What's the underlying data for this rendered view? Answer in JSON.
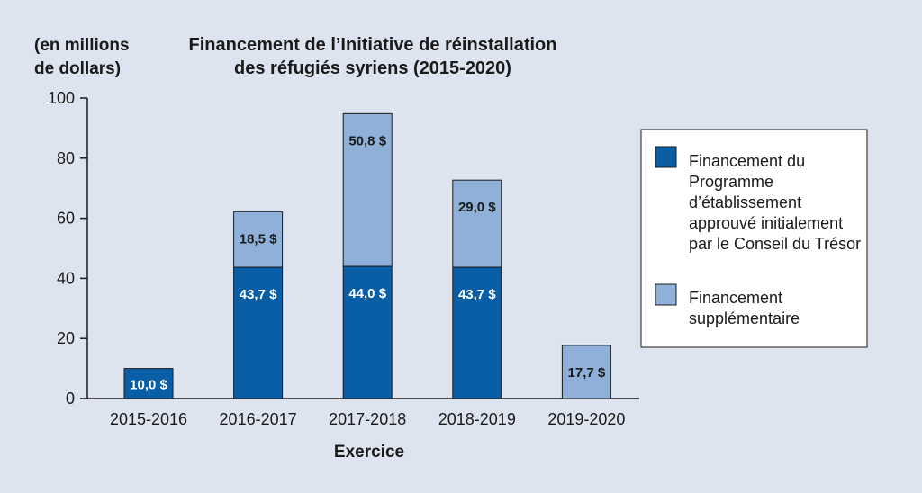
{
  "chart_data": {
    "type": "bar",
    "stacked": true,
    "title_lines": [
      "Financement de l’Initiative de réinstallation",
      "des réfugiés syriens (2015-2020)"
    ],
    "ylabel_lines": [
      "(en millions",
      "de dollars)"
    ],
    "xlabel": "Exercice",
    "ylim": [
      0,
      100
    ],
    "yticks": [
      0,
      20,
      40,
      60,
      80,
      100
    ],
    "grid": false,
    "legend_position": "right",
    "categories": [
      "2015-2016",
      "2016-2017",
      "2017-2018",
      "2018-2019",
      "2019-2020"
    ],
    "series": [
      {
        "name_lines": [
          "Financement du",
          "Programme",
          "d’établissement",
          "approuvé initialement",
          "par le Conseil du Trésor"
        ],
        "color": "#0a5ea6",
        "label_color": "#ffffff",
        "values": [
          10.0,
          43.7,
          44.0,
          43.7,
          0
        ],
        "labels": [
          "10,0 $",
          "43,7 $",
          "44,0 $",
          "43,7 $",
          ""
        ]
      },
      {
        "name_lines": [
          "Financement",
          "supplémentaire"
        ],
        "color": "#8fb1d9",
        "label_color": "#1a1a1a",
        "values": [
          0,
          18.5,
          50.8,
          29.0,
          17.7
        ],
        "labels": [
          "",
          "18,5 $",
          "50,8 $",
          "29,0 $",
          "17,7 $"
        ]
      }
    ]
  }
}
